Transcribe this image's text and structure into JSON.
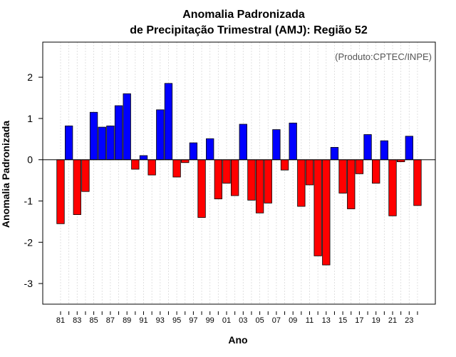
{
  "chart_data": {
    "type": "bar",
    "title": "Anomalia Padronizada",
    "subtitle": "de Precipitação Trimestral (AMJ): Região 52",
    "xlabel": "Ano",
    "ylabel": "Anomalia Padronizada",
    "annotation": "(Produto:CPTEC/INPE)",
    "ylim": [
      -3.5,
      2.85
    ],
    "yticks": [
      2,
      1,
      0,
      -1,
      -2,
      -3
    ],
    "ytick_labels": [
      "2",
      "1",
      "0",
      "-1",
      "-2",
      "-3"
    ],
    "grid": true,
    "positive_color": "#0000ff",
    "negative_color": "#ff0000",
    "categories": [
      "81",
      "82",
      "83",
      "84",
      "85",
      "86",
      "87",
      "88",
      "89",
      "90",
      "91",
      "92",
      "93",
      "94",
      "95",
      "96",
      "97",
      "98",
      "99",
      "00",
      "01",
      "02",
      "03",
      "04",
      "05",
      "06",
      "07",
      "08",
      "09",
      "10",
      "11",
      "12",
      "13",
      "14",
      "15",
      "16",
      "17",
      "18",
      "19",
      "20",
      "21",
      "22",
      "23",
      "24"
    ],
    "xtick_labels": [
      "81",
      "83",
      "85",
      "87",
      "89",
      "91",
      "93",
      "95",
      "97",
      "99",
      "01",
      "03",
      "05",
      "07",
      "09",
      "11",
      "13",
      "15",
      "17",
      "19",
      "21",
      "23"
    ],
    "values": [
      -1.55,
      0.82,
      -1.33,
      -0.77,
      1.15,
      0.79,
      0.82,
      1.31,
      1.6,
      -0.23,
      0.1,
      -0.37,
      1.21,
      1.85,
      -0.42,
      -0.07,
      0.41,
      -1.4,
      0.51,
      -0.95,
      -0.57,
      -0.87,
      0.86,
      -0.98,
      -1.29,
      -1.05,
      0.73,
      -0.25,
      0.89,
      -1.13,
      -0.61,
      -2.33,
      -2.55,
      0.3,
      -0.81,
      -1.19,
      -0.34,
      0.61,
      -0.57,
      0.46,
      -1.36,
      -0.05,
      0.57,
      -1.11
    ]
  }
}
